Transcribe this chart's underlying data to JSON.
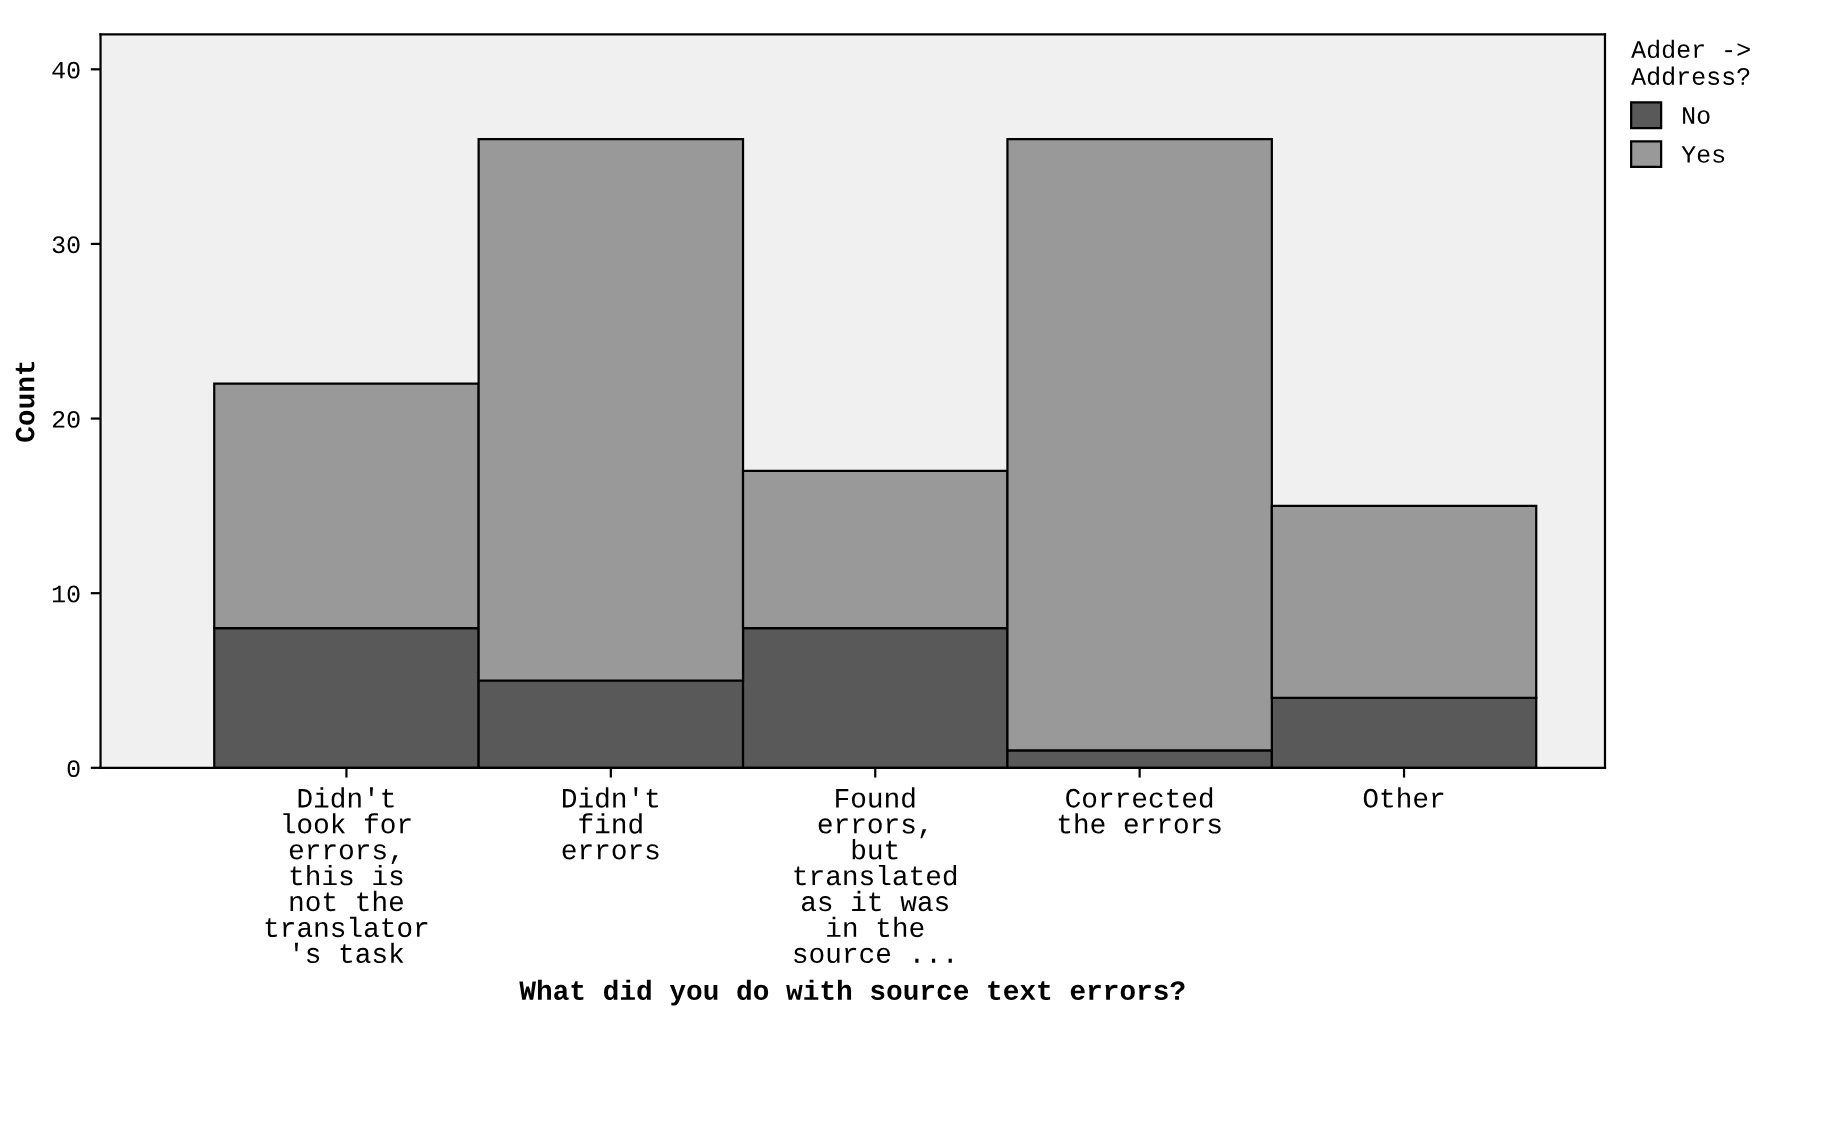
{
  "chart_data": {
    "type": "bar",
    "stacked": true,
    "xlabel": "What did you do with source text errors?",
    "ylabel": "Count",
    "categories": [
      "Didn't\nlook for\nerrors,\nthis is\nnot the\ntranslator\n's task",
      "Didn't\nfind\nerrors",
      "Found\nerrors,\nbut\ntranslated\nas it was\nin the\nsource ...",
      "Corrected\nthe errors",
      "Other"
    ],
    "series": [
      {
        "name": "No",
        "color": "#595959",
        "values": [
          8,
          5,
          8,
          1,
          4
        ]
      },
      {
        "name": "Yes",
        "color": "#999999",
        "values": [
          14,
          31,
          9,
          35,
          11
        ]
      }
    ],
    "legend_title": "Adder ->\nAddress?",
    "legend": "top right",
    "ylim": [
      0,
      42
    ],
    "yticks": [
      0,
      10,
      20,
      30,
      40
    ],
    "grid": false
  }
}
